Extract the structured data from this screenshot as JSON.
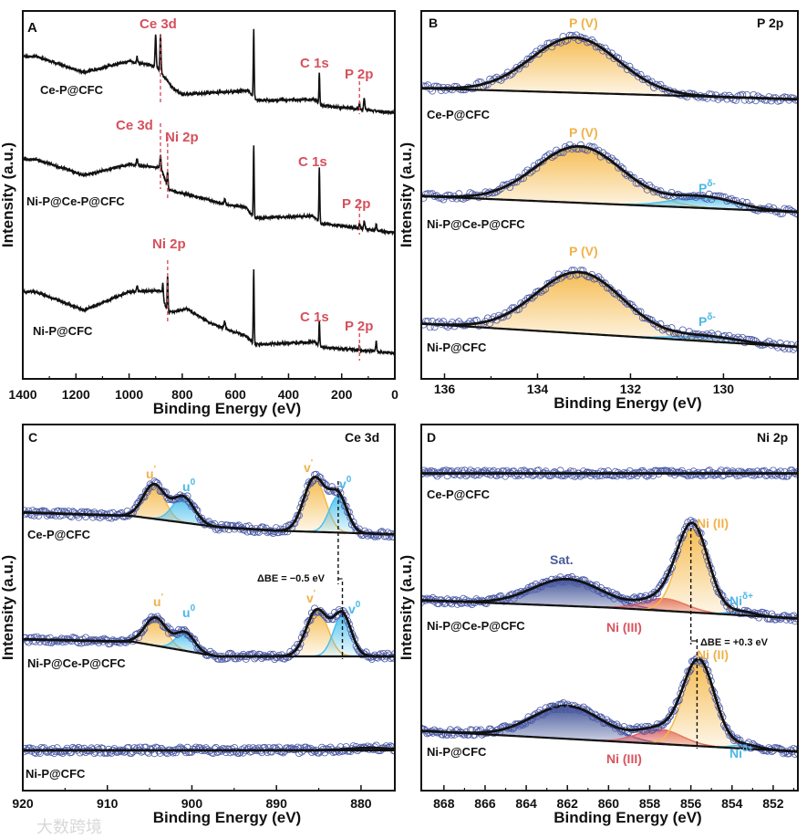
{
  "figure": {
    "watermark": "大数跨境"
  },
  "chart_data": [
    {
      "panel": "A",
      "type": "line",
      "title": "",
      "xlabel": "Binding Energy (eV)",
      "ylabel": "Intensity (a.u.)",
      "xlim": [
        1400,
        0
      ],
      "ylim": [
        0,
        3
      ],
      "xticks": [
        1400,
        1200,
        1000,
        800,
        600,
        400,
        200,
        0
      ],
      "grid": false,
      "series": [
        {
          "name": "Ce-P@CFC",
          "baseline": [
            [
              1350,
              2.63
            ],
            [
              1170,
              2.5
            ],
            [
              1000,
              2.59
            ],
            [
              900,
              2.55
            ],
            [
              830,
              2.36
            ],
            [
              800,
              2.32
            ],
            [
              550,
              2.35
            ],
            [
              520,
              2.27
            ],
            [
              300,
              2.28
            ],
            [
              280,
              2.23
            ],
            [
              0,
              2.17
            ]
          ],
          "peaks": [
            {
              "center": 900,
              "height": 0.25,
              "fwhm": 5
            },
            {
              "center": 882,
              "height": 0.3,
              "fwhm": 5
            },
            {
              "center": 970,
              "height": 0.05,
              "fwhm": 5
            },
            {
              "center": 531,
              "height": 0.56,
              "fwhm": 4
            },
            {
              "center": 284,
              "height": 0.25,
              "fwhm": 4
            },
            {
              "center": 133,
              "height": 0.06,
              "fwhm": 4
            },
            {
              "center": 115,
              "height": 0.1,
              "fwhm": 5
            }
          ]
        },
        {
          "name": "Ni-P@Ce-P@CFC",
          "baseline": [
            [
              1350,
              1.79
            ],
            [
              1170,
              1.66
            ],
            [
              1000,
              1.75
            ],
            [
              880,
              1.72
            ],
            [
              850,
              1.54
            ],
            [
              700,
              1.46
            ],
            [
              640,
              1.42
            ],
            [
              560,
              1.4
            ],
            [
              530,
              1.31
            ],
            [
              310,
              1.33
            ],
            [
              280,
              1.27
            ],
            [
              0,
              1.19
            ]
          ],
          "peaks": [
            {
              "center": 882,
              "height": 0.1,
              "fwhm": 5
            },
            {
              "center": 855,
              "height": 0.12,
              "fwhm": 4
            },
            {
              "center": 970,
              "height": 0.05,
              "fwhm": 5
            },
            {
              "center": 640,
              "height": 0.05,
              "fwhm": 6
            },
            {
              "center": 531,
              "height": 0.6,
              "fwhm": 4
            },
            {
              "center": 284,
              "height": 0.44,
              "fwhm": 4
            },
            {
              "center": 133,
              "height": 0.05,
              "fwhm": 4
            },
            {
              "center": 115,
              "height": 0.06,
              "fwhm": 5
            },
            {
              "center": 70,
              "height": 0.05,
              "fwhm": 5
            }
          ]
        },
        {
          "name": "Ni-P@CFC",
          "baseline": [
            [
              1350,
              0.71
            ],
            [
              1170,
              0.56
            ],
            [
              1000,
              0.71
            ],
            [
              880,
              0.72
            ],
            [
              855,
              0.54
            ],
            [
              780,
              0.57
            ],
            [
              700,
              0.46
            ],
            [
              640,
              0.41
            ],
            [
              560,
              0.35
            ],
            [
              530,
              0.28
            ],
            [
              300,
              0.3
            ],
            [
              280,
              0.26
            ],
            [
              0,
              0.21
            ]
          ],
          "peaks": [
            {
              "center": 873,
              "height": 0.12,
              "fwhm": 4
            },
            {
              "center": 855,
              "height": 0.3,
              "fwhm": 4
            },
            {
              "center": 970,
              "height": 0.05,
              "fwhm": 5
            },
            {
              "center": 640,
              "height": 0.06,
              "fwhm": 6
            },
            {
              "center": 531,
              "height": 0.62,
              "fwhm": 4
            },
            {
              "center": 284,
              "height": 0.2,
              "fwhm": 4
            },
            {
              "center": 133,
              "height": 0.03,
              "fwhm": 4
            },
            {
              "center": 70,
              "height": 0.08,
              "fwhm": 5
            }
          ]
        }
      ],
      "annotations": [
        {
          "text": "A",
          "color": "#111111"
        },
        {
          "text": "Ce 3d",
          "color": "#d6505c"
        },
        {
          "text": "C 1s",
          "color": "#d6505c"
        },
        {
          "text": "P 2p",
          "color": "#d6505c"
        },
        {
          "text": "Ce-P@CFC",
          "color": "#111111"
        },
        {
          "text": "Ce 3d",
          "color": "#d6505c"
        },
        {
          "text": "Ni 2p",
          "color": "#d6505c"
        },
        {
          "text": "C 1s",
          "color": "#d6505c"
        },
        {
          "text": "P 2p",
          "color": "#d6505c"
        },
        {
          "text": "Ni-P@Ce-P@CFC",
          "color": "#111111"
        },
        {
          "text": "Ni 2p",
          "color": "#d6505c"
        },
        {
          "text": "C 1s",
          "color": "#d6505c"
        },
        {
          "text": "P 2p",
          "color": "#d6505c"
        },
        {
          "text": "Ni-P@CFC",
          "color": "#111111"
        }
      ],
      "reference_lines_eV": [
        882,
        882,
        855,
        855,
        133,
        133,
        133
      ]
    },
    {
      "panel": "B",
      "type": "line",
      "title": "P 2p",
      "xlabel": "Binding Energy (eV)",
      "ylabel": "Intensity (a.u.)",
      "xlim": [
        136.5,
        128.4
      ],
      "ylim": [
        0,
        3
      ],
      "xticks": [
        136,
        134,
        132,
        130
      ],
      "grid": false,
      "series": [
        {
          "name": "Ce-P@CFC",
          "baseline": [
            [
              136.5,
              2.37
            ],
            [
              128.4,
              2.28
            ]
          ],
          "peaks": [
            {
              "label": "P (V)",
              "center": 133.2,
              "height": 0.45,
              "fwhm": 2.2,
              "color": "#f5b94a"
            }
          ]
        },
        {
          "name": "Ni-P@Ce-P@CFC",
          "baseline": [
            [
              136.5,
              1.49
            ],
            [
              128.4,
              1.36
            ]
          ],
          "peaks": [
            {
              "label": "P (V)",
              "center": 133.1,
              "height": 0.46,
              "fwhm": 2.2,
              "color": "#f5b94a"
            },
            {
              "label": "Pδ-",
              "center": 130.4,
              "height": 0.09,
              "fwhm": 1.6,
              "color": "#4cc0ec"
            }
          ]
        },
        {
          "name": "Ni-P@CFC",
          "baseline": [
            [
              136.5,
              0.45
            ],
            [
              128.4,
              0.26
            ]
          ],
          "peaks": [
            {
              "label": "P (V)",
              "center": 133.1,
              "height": 0.5,
              "fwhm": 2.2,
              "color": "#f5b94a"
            },
            {
              "label": "Pδ-",
              "center": 130.3,
              "height": 0.04,
              "fwhm": 1.6,
              "color": "#4cc0ec"
            }
          ]
        }
      ],
      "annotations": [
        {
          "text": "B",
          "color": "#111111"
        },
        {
          "text": "P 2p",
          "color": "#111111"
        },
        {
          "text": "P (V)",
          "color": "#f0b24a"
        },
        {
          "text": "Ce-P@CFC",
          "color": "#111111"
        },
        {
          "text": "P (V)",
          "color": "#f0b24a"
        },
        {
          "text": "P",
          "sup": "δ-",
          "color": "#4cb8e8"
        },
        {
          "text": "Ni-P@Ce-P@CFC",
          "color": "#111111"
        },
        {
          "text": "P (V)",
          "color": "#f0b24a"
        },
        {
          "text": "P",
          "sup": "δ-",
          "color": "#4cb8e8"
        },
        {
          "text": "Ni-P@CFC",
          "color": "#111111"
        }
      ]
    },
    {
      "panel": "C",
      "type": "line",
      "title": "Ce 3d",
      "xlabel": "Binding Energy (eV)",
      "ylabel": "Intensity (a.u.)",
      "xlim": [
        920,
        876
      ],
      "ylim": [
        0,
        3
      ],
      "xticks": [
        920,
        910,
        900,
        890,
        880
      ],
      "grid": false,
      "series": [
        {
          "name": "Ce-P@CFC",
          "baseline": [
            [
              920,
              2.28
            ],
            [
              907,
              2.25
            ],
            [
              897,
              2.16
            ],
            [
              890,
              2.13
            ],
            [
              876,
              2.1
            ]
          ],
          "peaks": [
            {
              "label": "u'",
              "center": 904.5,
              "height": 0.28,
              "fwhm": 3,
              "color": "#f5b94a"
            },
            {
              "label": "u0",
              "center": 901,
              "height": 0.21,
              "fwhm": 3,
              "color": "#4cc0ec"
            },
            {
              "label": "v'",
              "center": 885.5,
              "height": 0.44,
              "fwhm": 3,
              "color": "#f5b94a"
            },
            {
              "label": "v0",
              "center": 882.7,
              "height": 0.3,
              "fwhm": 2.5,
              "color": "#4cc0ec"
            }
          ]
        },
        {
          "name": "Ni-P@Ce-P@CFC",
          "baseline": [
            [
              920,
              1.24
            ],
            [
              907,
              1.22
            ],
            [
              897,
              1.1
            ],
            [
              876,
              1.1
            ]
          ],
          "peaks": [
            {
              "label": "u'",
              "center": 904.3,
              "height": 0.23,
              "fwhm": 3,
              "color": "#f5b94a"
            },
            {
              "label": "u0",
              "center": 900.8,
              "height": 0.15,
              "fwhm": 2.6,
              "color": "#4cc0ec"
            },
            {
              "label": "v'",
              "center": 885.2,
              "height": 0.38,
              "fwhm": 3,
              "color": "#f5b94a"
            },
            {
              "label": "v0",
              "center": 882.2,
              "height": 0.34,
              "fwhm": 2.5,
              "color": "#4cc0ec"
            }
          ]
        },
        {
          "name": "Ni-P@CFC",
          "baseline": [
            [
              920,
              0.33
            ],
            [
              876,
              0.33
            ]
          ],
          "peaks": [
            {
              "center": 879,
              "height": 0.02,
              "fwhm": 6
            }
          ]
        }
      ],
      "annotations": [
        {
          "text": "C",
          "color": "#111111"
        },
        {
          "text": "Ce 3d",
          "color": "#111111"
        },
        {
          "text": "u",
          "sup": "'",
          "color": "#f0b24a"
        },
        {
          "text": "u",
          "sup": "0",
          "color": "#4cb8e8"
        },
        {
          "text": "v",
          "sup": "'",
          "color": "#f0b24a"
        },
        {
          "text": "v",
          "sup": "0",
          "color": "#4cb8e8"
        },
        {
          "text": "Ce-P@CFC",
          "color": "#111111"
        },
        {
          "text": "ΔBE = −0.5 eV",
          "color": "#111111",
          "small": true
        },
        {
          "text": "u",
          "sup": "'",
          "color": "#f0b24a"
        },
        {
          "text": "u",
          "sup": "0",
          "color": "#4cb8e8"
        },
        {
          "text": "v",
          "sup": "'",
          "color": "#f0b24a"
        },
        {
          "text": "v",
          "sup": "0",
          "color": "#4cb8e8"
        },
        {
          "text": "Ni-P@Ce-P@CFC",
          "color": "#111111"
        },
        {
          "text": "Ni-P@CFC",
          "color": "#111111"
        }
      ],
      "reference_lines_eV": [
        882.7,
        882.2
      ]
    },
    {
      "panel": "D",
      "type": "line",
      "title": "Ni 2p",
      "xlabel": "Binding Energy (eV)",
      "ylabel": "Intensity (a.u.)",
      "xlim": [
        869.1,
        850.8
      ],
      "ylim": [
        0,
        3
      ],
      "xticks": [
        868,
        866,
        864,
        862,
        860,
        858,
        856,
        854,
        852
      ],
      "grid": false,
      "series": [
        {
          "name": "Ce-P@CFC",
          "baseline": [
            [
              869.1,
              2.6
            ],
            [
              850.8,
              2.6
            ]
          ],
          "peaks": []
        },
        {
          "name": "Ni-P@Ce-P@CFC",
          "baseline": [
            [
              869.1,
              1.56
            ],
            [
              860,
              1.5
            ],
            [
              850.8,
              1.41
            ]
          ],
          "peaks": [
            {
              "label": "Sat.",
              "center": 862,
              "height": 0.22,
              "fwhm": 4,
              "color": "#3d4f96"
            },
            {
              "label": "Ni (III)",
              "center": 857.3,
              "height": 0.1,
              "fwhm": 2.5,
              "color": "#e06464"
            },
            {
              "label": "Ni (II)",
              "center": 855.9,
              "height": 0.69,
              "fwhm": 1.8,
              "color": "#f5b94a"
            },
            {
              "label": "Niδ+",
              "center": 853.5,
              "height": 0.03,
              "fwhm": 1.5,
              "color": "#4cc0ec"
            }
          ]
        },
        {
          "name": "Ni-P@CFC",
          "baseline": [
            [
              869.1,
              0.49
            ],
            [
              850.8,
              0.32
            ]
          ],
          "peaks": [
            {
              "label": "Sat.",
              "center": 862,
              "height": 0.27,
              "fwhm": 4,
              "color": "#3d4f96"
            },
            {
              "label": "Ni (III)",
              "center": 857.5,
              "height": 0.12,
              "fwhm": 2.5,
              "color": "#e06464"
            },
            {
              "label": "Ni (II)",
              "center": 855.6,
              "height": 0.69,
              "fwhm": 1.8,
              "color": "#f5b94a"
            },
            {
              "label": "Niδ+",
              "center": 853.3,
              "height": 0.03,
              "fwhm": 1.5,
              "color": "#4cc0ec"
            }
          ]
        }
      ],
      "annotations": [
        {
          "text": "D",
          "color": "#111111"
        },
        {
          "text": "Ni 2p",
          "color": "#111111"
        },
        {
          "text": "Ce-P@CFC",
          "color": "#111111"
        },
        {
          "text": "Sat.",
          "color": "#4a5a9a"
        },
        {
          "text": "Ni (II)",
          "color": "#f0b24a"
        },
        {
          "text": "Ni",
          "sup": "δ+",
          "color": "#4cb8e8"
        },
        {
          "text": "Ni (III)",
          "color": "#d9535f"
        },
        {
          "text": "Ni-P@Ce-P@CFC",
          "color": "#111111"
        },
        {
          "text": "ΔBE = +0.3 eV",
          "color": "#111111",
          "small": true
        },
        {
          "text": "Ni (II)",
          "color": "#f0b24a"
        },
        {
          "text": "Sat.",
          "color": "#4a5a9a"
        },
        {
          "text": "Ni",
          "sup": "δ+",
          "color": "#4cb8e8"
        },
        {
          "text": "Ni (III)",
          "color": "#d9535f"
        },
        {
          "text": "Ni-P@CFC",
          "color": "#111111"
        }
      ],
      "reference_lines_eV": [
        856.0,
        855.7
      ]
    }
  ]
}
